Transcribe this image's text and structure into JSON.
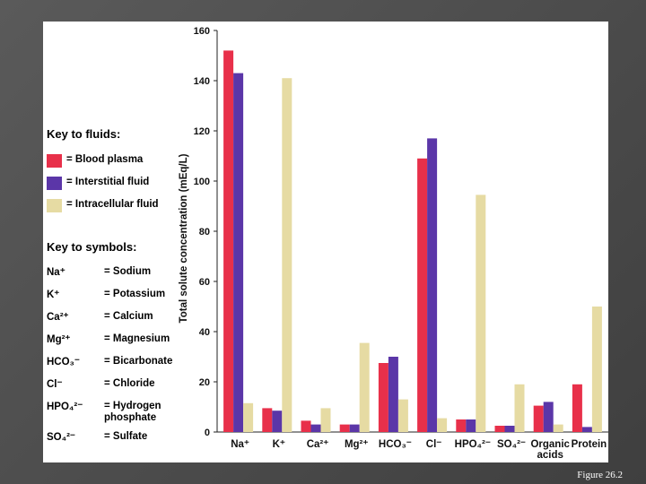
{
  "caption": "Figure 26.2",
  "key_fluids": {
    "title": "Key to fluids:",
    "items": [
      {
        "label": "= Blood plasma",
        "color": "#e8304a"
      },
      {
        "label": "= Interstitial fluid",
        "color": "#5b36a8"
      },
      {
        "label": "= Intracellular fluid",
        "color": "#e6dba3"
      }
    ]
  },
  "key_symbols": {
    "title": "Key to symbols:",
    "items": [
      {
        "symbol": "Na⁺",
        "name": "= Sodium"
      },
      {
        "symbol": "K⁺",
        "name": "= Potassium"
      },
      {
        "symbol": "Ca²⁺",
        "name": "= Calcium"
      },
      {
        "symbol": "Mg²⁺",
        "name": "= Magnesium"
      },
      {
        "symbol": "HCO₃⁻",
        "name": "= Bicarbonate"
      },
      {
        "symbol": "Cl⁻",
        "name": "= Chloride"
      },
      {
        "symbol": "HPO₄²⁻",
        "name": "= Hydrogen phosphate"
      },
      {
        "symbol": "SO₄²⁻",
        "name": "= Sulfate"
      }
    ]
  },
  "chart_data": {
    "type": "bar",
    "title": "",
    "xlabel": "",
    "ylabel": "Total solute concentration (mEq/L)",
    "ylim": [
      0,
      160
    ],
    "yticks": [
      "0",
      "20",
      "40",
      "60",
      "80",
      "100",
      "120",
      "140",
      "160"
    ],
    "categories": [
      "Na⁺",
      "K⁺",
      "Ca²⁺",
      "Mg²⁺",
      "HCO₃⁻",
      "Cl⁻",
      "HPO₄²⁻",
      "SO₄²⁻",
      "Organic acids",
      "Protein"
    ],
    "series": [
      {
        "name": "Blood plasma",
        "color": "#e8304a",
        "values": [
          152,
          9.5,
          4.5,
          3,
          27.5,
          109,
          5,
          2.5,
          10.5,
          19
        ]
      },
      {
        "name": "Interstitial fluid",
        "color": "#5b36a8",
        "values": [
          143,
          8.5,
          3,
          3,
          30,
          117,
          5,
          2.5,
          12,
          2
        ]
      },
      {
        "name": "Intracellular fluid",
        "color": "#e6dba3",
        "values": [
          11.5,
          141,
          9.5,
          35.5,
          13,
          5.5,
          94.5,
          19,
          3,
          50
        ]
      }
    ]
  }
}
